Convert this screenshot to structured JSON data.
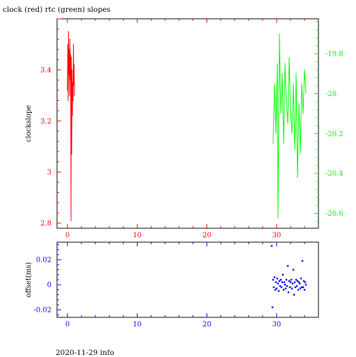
{
  "title": "clock (red) rtc (green) slopes",
  "footer": "2020-11-29 info",
  "colors": {
    "clock": "#ff0000",
    "rtc": "#00ff00",
    "offset": "#0000ff",
    "frame": "#000000"
  },
  "chart_data": [
    {
      "type": "line",
      "ylabel": "clockslope",
      "xlim": [
        -1.5,
        36
      ],
      "ylim": [
        2.78,
        3.6
      ],
      "xticks": [
        0,
        10,
        20,
        30
      ],
      "yticks": [
        2.8,
        3.0,
        3.2,
        3.4
      ],
      "ytick_labels": [
        "2.8",
        "3",
        "3.2",
        "3.4"
      ],
      "y2lim": [
        -20.675,
        -19.625
      ],
      "y2ticks": [
        -20.6,
        -20.4,
        -20.2,
        -20.0,
        -19.8
      ],
      "y2tick_labels": [
        "-20.6",
        "-20.4",
        "-20.2",
        "-20",
        "-19.8"
      ],
      "series": [
        {
          "axis": "left",
          "x": [
            0,
            0.05,
            0.1,
            0.15,
            0.2,
            0.25,
            0.3,
            0.35,
            0.4,
            0.45,
            0.5,
            0.55,
            0.6,
            0.65,
            0.7,
            0.75,
            0.8,
            0.85,
            0.9,
            0.95,
            1.0
          ],
          "y": [
            3.32,
            3.5,
            3.28,
            3.55,
            3.38,
            3.48,
            3.3,
            3.52,
            3.36,
            3.46,
            2.81,
            3.45,
            3.07,
            3.4,
            3.22,
            3.35,
            3.28,
            3.5,
            3.34,
            3.42,
            3.3
          ]
        },
        {
          "axis": "right",
          "x": [
            29.5,
            29.7,
            29.9,
            30.1,
            30.2,
            30.4,
            30.6,
            30.8,
            31.0,
            31.2,
            31.4,
            31.6,
            31.8,
            32.0,
            32.2,
            32.4,
            32.6,
            32.8,
            33.0,
            33.2,
            33.4,
            33.6,
            33.8,
            34.0,
            34.2
          ],
          "y": [
            -20.25,
            -19.95,
            -20.2,
            -19.85,
            -20.62,
            -19.7,
            -20.1,
            -19.9,
            -20.25,
            -19.85,
            -20.05,
            -20.15,
            -19.82,
            -20.1,
            -20.2,
            -19.95,
            -20.28,
            -19.9,
            -20.42,
            -20.05,
            -20.3,
            -19.95,
            -20.1,
            -19.88,
            -20.0
          ]
        }
      ]
    },
    {
      "type": "scatter",
      "ylabel": "offset(ms)",
      "xlim": [
        -1.5,
        36
      ],
      "ylim": [
        -0.026,
        0.034
      ],
      "xticks": [
        0,
        10,
        20,
        30
      ],
      "yticks": [
        -0.02,
        0,
        0.02
      ],
      "ytick_labels": [
        "-0.02",
        "0",
        "0.02"
      ],
      "series": [
        {
          "x": [
            29.3,
            29.4,
            29.5,
            29.6,
            29.7,
            29.8,
            29.9,
            30.0,
            30.1,
            30.2,
            30.3,
            30.4,
            30.5,
            30.6,
            30.7,
            30.8,
            30.9,
            31.0,
            31.1,
            31.2,
            31.3,
            31.4,
            31.5,
            31.6,
            31.7,
            31.8,
            31.9,
            32.0,
            32.1,
            32.2,
            32.3,
            32.4,
            32.5,
            32.6,
            32.7,
            32.8,
            32.9,
            33.0,
            33.1,
            33.2,
            33.3,
            33.4,
            33.5,
            33.6,
            33.7,
            33.8,
            33.9,
            34.0,
            34.1,
            34.2
          ],
          "y": [
            0.031,
            -0.018,
            0.004,
            -0.002,
            0.006,
            -0.004,
            0.002,
            -0.003,
            0.005,
            0.001,
            -0.005,
            0.003,
            -0.001,
            0.004,
            -0.002,
            0.002,
            0.008,
            -0.004,
            0.002,
            0.0,
            -0.003,
            0.004,
            -0.001,
            0.015,
            -0.006,
            0.003,
            -0.002,
            0.002,
            0.004,
            -0.003,
            0.001,
            0.012,
            -0.008,
            0.002,
            -0.002,
            0.004,
            -0.001,
            0.003,
            -0.004,
            0.002,
            0.001,
            -0.003,
            0.005,
            -0.002,
            0.019,
            -0.002,
            0.003,
            -0.004,
            0.002,
            0.0
          ]
        }
      ]
    }
  ]
}
